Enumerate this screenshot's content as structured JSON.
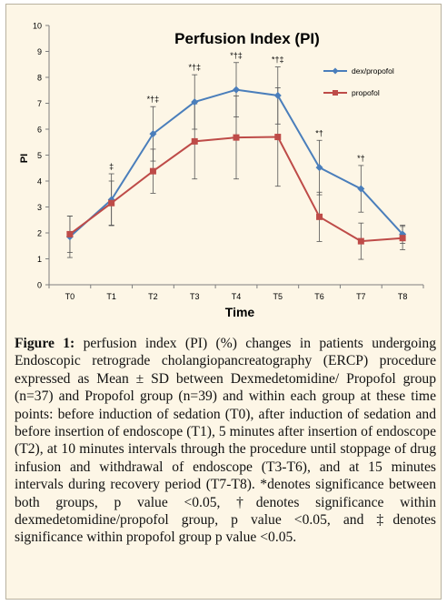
{
  "chart_data": {
    "type": "line",
    "title": "Perfusion Index (PI)",
    "xlabel": "Time",
    "ylabel": "PI",
    "ylim": [
      0,
      10
    ],
    "yticks": [
      0,
      1,
      2,
      3,
      4,
      5,
      6,
      7,
      8,
      9,
      10
    ],
    "categories": [
      "T0",
      "T1",
      "T2",
      "T3",
      "T4",
      "T5",
      "T6",
      "T7",
      "T8"
    ],
    "legend_position": "top-right",
    "grid": false,
    "series": [
      {
        "name": "dex/propofol",
        "color": "#4a7ebb",
        "marker": "diamond",
        "values": [
          1.85,
          3.28,
          5.82,
          7.05,
          7.52,
          7.3,
          4.52,
          3.7,
          1.95
        ],
        "sd": [
          0.8,
          1.0,
          1.05,
          1.05,
          1.05,
          1.1,
          1.05,
          0.9,
          0.35
        ]
      },
      {
        "name": "propofol",
        "color": "#be4b48",
        "marker": "square",
        "values": [
          1.95,
          3.15,
          4.38,
          5.53,
          5.68,
          5.7,
          2.62,
          1.68,
          1.8
        ],
        "sd": [
          0.7,
          0.85,
          0.85,
          1.45,
          1.6,
          1.9,
          0.95,
          0.7,
          0.45
        ]
      }
    ],
    "annotations": [
      "",
      "‡",
      "*†‡",
      "*†‡",
      "*†‡",
      "*†‡",
      "*†",
      "*†",
      ""
    ]
  },
  "caption": {
    "label": "Figure 1:",
    "text": " perfusion index (PI) (%) changes in patients undergoing Endoscopic retrograde cholangiopancreatography (ERCP) procedure expressed as Mean ± SD between Dexmedetomidine/ Propofol group (n=37) and Propofol group (n=39) and within each group at these time points: before induction of sedation (T0), after induction of sedation and before insertion of endoscope (T1), 5 minutes after insertion of endoscope (T2), at 10 minutes intervals through the procedure until stoppage of drug infusion and withdrawal of endoscope (T3-T6), and at 15 minutes intervals during recovery period (T7-T8). *denotes significance between both groups, p value <0.05, †denotes significance within dexmedetomidine/propofol group, p value <0.05, and ‡denotes significance within propofol group p value <0.05."
  }
}
